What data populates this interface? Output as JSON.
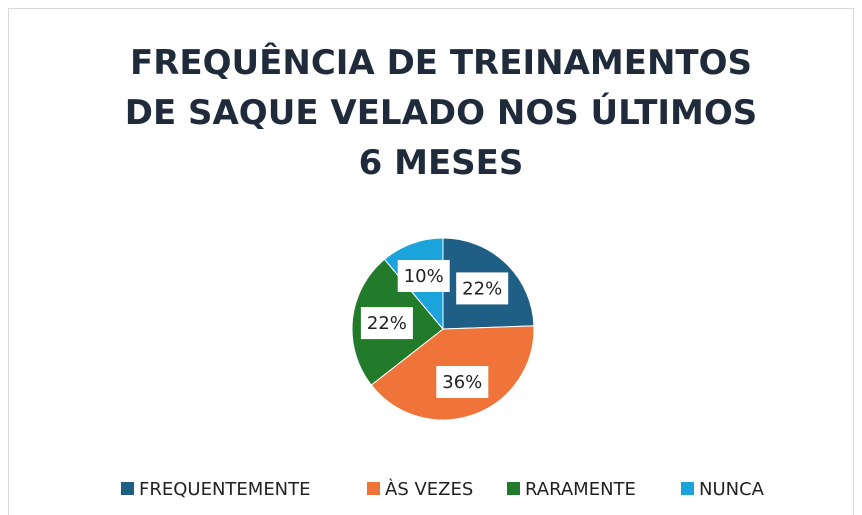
{
  "chart_data": {
    "type": "pie",
    "title": "FREQUÊNCIA DE TREINAMENTOS DE SAQUE VELADO NOS ÚLTIMOS 6 MESES",
    "categories": [
      "FREQUENTEMENTE",
      "ÀS VEZES",
      "RARAMENTE",
      "NUNCA"
    ],
    "values": [
      22,
      36,
      22,
      10
    ],
    "value_labels": [
      "22%",
      "36%",
      "22%",
      "10%"
    ],
    "colors": [
      "#1f5f86",
      "#f0743a",
      "#227b2b",
      "#1aa4db"
    ],
    "legend": "bottom"
  }
}
